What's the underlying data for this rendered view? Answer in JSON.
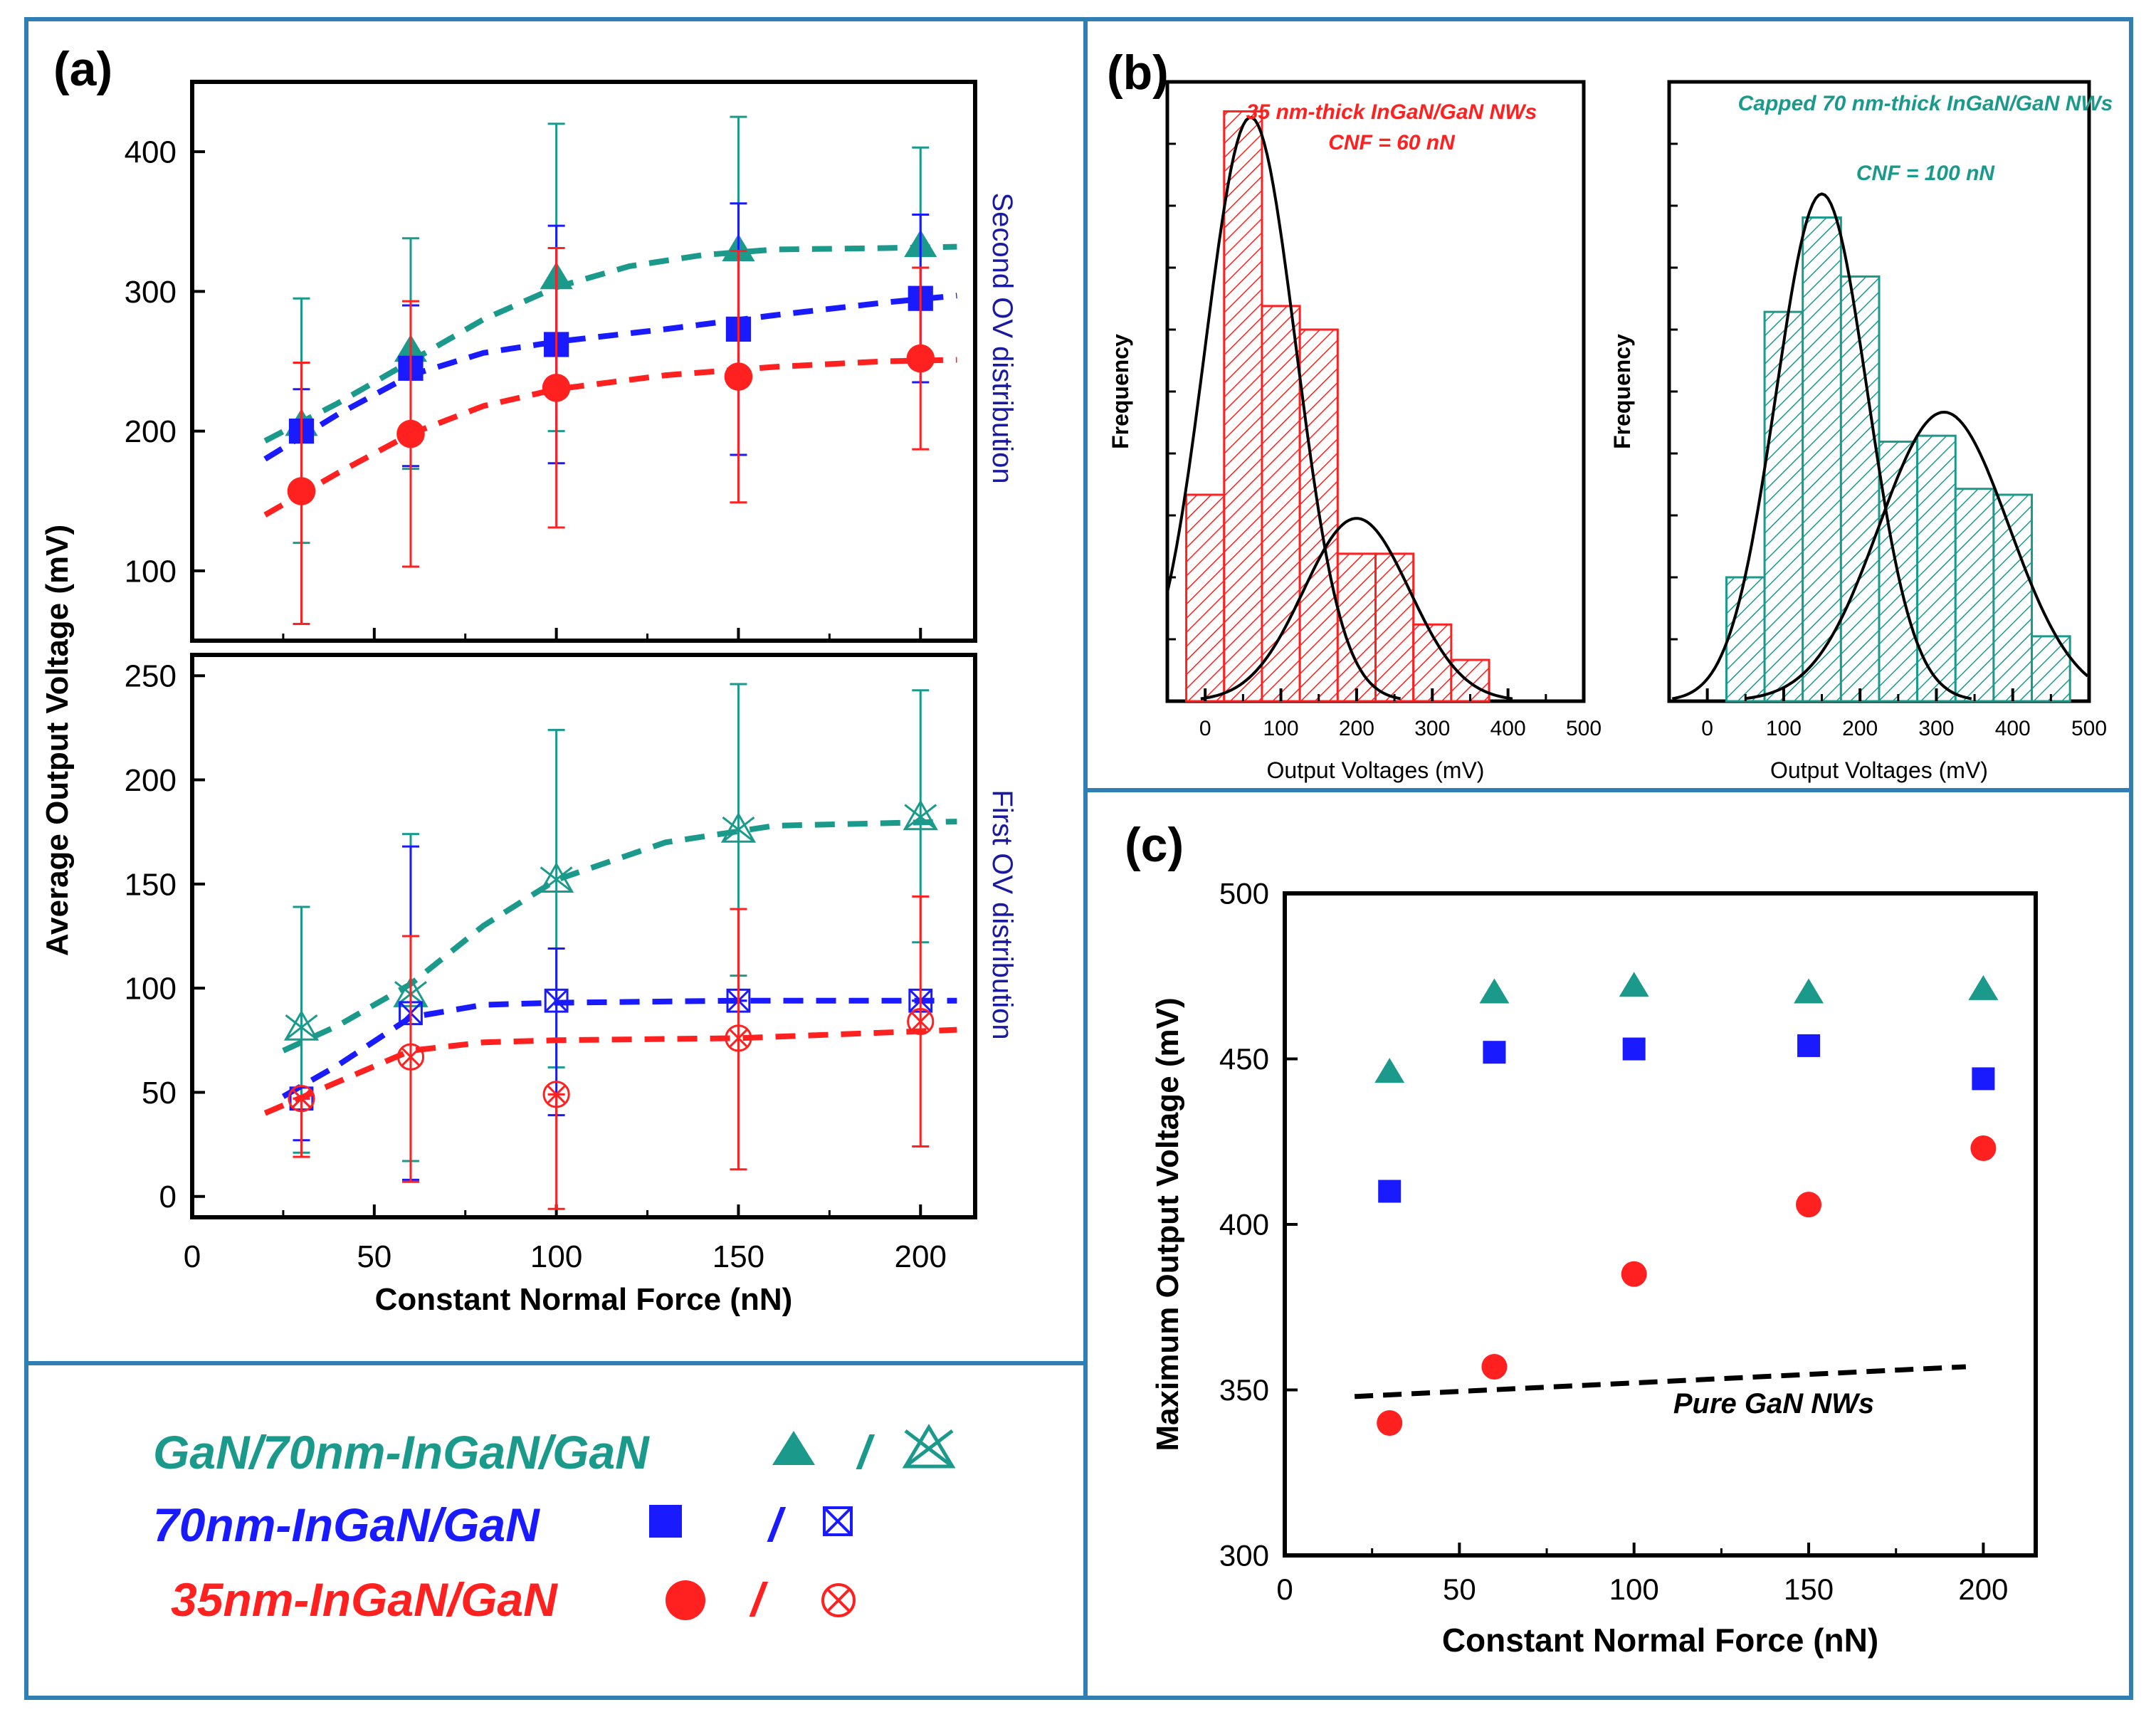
{
  "colors": {
    "teal": "#1b9a8c",
    "blue": "#1a1aff",
    "red": "#ff2020",
    "black": "#000000",
    "frame": "#2f7fb5",
    "axis_text_blue": "#1a1aa0"
  },
  "panel_a": {
    "label": "(a)",
    "ylabel": "Average Output Voltage (mV)",
    "xlabel": "Constant Normal Force (nN)",
    "upper_side_label": "Second OV distribution",
    "lower_side_label": "First OV distribution"
  },
  "panel_b": {
    "label": "(b)"
  },
  "panel_c": {
    "label": "(c)"
  },
  "legend": {
    "items": [
      {
        "name": "GaN/70nm-InGaN/GaN",
        "color": "#1b9a8c",
        "separator": "/"
      },
      {
        "name": "70nm-InGaN/GaN",
        "color": "#1a1aff",
        "separator": "/"
      },
      {
        "name": "35nm-InGaN/GaN",
        "color": "#ff2020",
        "separator": "/"
      }
    ]
  },
  "chart_data": [
    {
      "id": "a_upper",
      "type": "scatter",
      "title": "Second OV distribution",
      "xlim": [
        0,
        215
      ],
      "ylim": [
        50,
        450
      ],
      "xticks": [
        0,
        50,
        100,
        150,
        200
      ],
      "yticks": [
        100,
        200,
        300,
        400
      ],
      "ylabel": "Average Output Voltage (mV)",
      "x": [
        30,
        60,
        100,
        150,
        200
      ],
      "series": [
        {
          "name": "GaN/70nm-InGaN/GaN",
          "marker": "triangle",
          "color": "#1b9a8c",
          "values": [
            205,
            258,
            310,
            330,
            333
          ],
          "err_low": [
            85,
            85,
            110,
            95,
            75
          ],
          "err_high": [
            90,
            80,
            110,
            95,
            70
          ],
          "fit": [
            [
              20,
              193
            ],
            [
              40,
              220
            ],
            [
              60,
              250
            ],
            [
              80,
              280
            ],
            [
              100,
              303
            ],
            [
              120,
              318
            ],
            [
              140,
              326
            ],
            [
              160,
              330
            ],
            [
              190,
              331
            ],
            [
              210,
              332
            ]
          ]
        },
        {
          "name": "70nm-InGaN/GaN",
          "marker": "square",
          "color": "#1a1aff",
          "values": [
            200,
            245,
            262,
            273,
            295
          ],
          "err_low": [
            50,
            70,
            85,
            90,
            60
          ],
          "err_high": [
            30,
            45,
            85,
            90,
            60
          ],
          "fit": [
            [
              20,
              180
            ],
            [
              40,
              212
            ],
            [
              60,
              240
            ],
            [
              80,
              256
            ],
            [
              100,
              264
            ],
            [
              130,
              273
            ],
            [
              160,
              283
            ],
            [
              190,
              292
            ],
            [
              210,
              297
            ]
          ]
        },
        {
          "name": "35nm-InGaN/GaN",
          "marker": "circle",
          "color": "#ff2020",
          "values": [
            157,
            198,
            231,
            239,
            252
          ],
          "err_low": [
            95,
            95,
            100,
            90,
            65
          ],
          "err_high": [
            92,
            95,
            100,
            90,
            65
          ],
          "fit": [
            [
              20,
              140
            ],
            [
              40,
              170
            ],
            [
              60,
              198
            ],
            [
              80,
              218
            ],
            [
              100,
              230
            ],
            [
              130,
              240
            ],
            [
              160,
              246
            ],
            [
              190,
              250
            ],
            [
              210,
              251
            ]
          ]
        }
      ]
    },
    {
      "id": "a_lower",
      "type": "scatter",
      "title": "First OV distribution",
      "xlim": [
        0,
        215
      ],
      "ylim": [
        -10,
        260
      ],
      "xticks": [
        0,
        50,
        100,
        150,
        200
      ],
      "xticklabels": [
        "0",
        "50",
        "100",
        "150",
        "200"
      ],
      "yticks": [
        0,
        50,
        100,
        150,
        200,
        250
      ],
      "xlabel": "Constant Normal Force (nN)",
      "x": [
        30,
        60,
        100,
        150,
        200
      ],
      "series": [
        {
          "name": "GaN/70nm-InGaN/GaN",
          "marker": "crossed-triangle",
          "color": "#1b9a8c",
          "values": [
            81,
            97,
            152,
            176,
            182
          ],
          "err_low": [
            60,
            80,
            90,
            70,
            60
          ],
          "err_high": [
            58,
            77,
            72,
            70,
            61
          ],
          "fit": [
            [
              25,
              70
            ],
            [
              40,
              82
            ],
            [
              60,
              102
            ],
            [
              80,
              130
            ],
            [
              100,
              152
            ],
            [
              130,
              170
            ],
            [
              160,
              178
            ],
            [
              210,
              180
            ]
          ]
        },
        {
          "name": "70nm-InGaN/GaN",
          "marker": "boxed-x",
          "color": "#1a1aff",
          "values": [
            47,
            88,
            94,
            94,
            94
          ],
          "err_low": [
            20,
            80,
            55,
            0,
            0
          ],
          "err_high": [
            0,
            80,
            25,
            0,
            0
          ],
          "fit": [
            [
              25,
              48
            ],
            [
              40,
              63
            ],
            [
              60,
              86
            ],
            [
              80,
              92
            ],
            [
              100,
              93
            ],
            [
              150,
              94
            ],
            [
              210,
              94
            ]
          ]
        },
        {
          "name": "35nm-InGaN/GaN",
          "marker": "circled-x",
          "color": "#ff2020",
          "values": [
            47,
            67,
            49,
            76,
            84
          ],
          "err_low": [
            28,
            60,
            55,
            63,
            60
          ],
          "err_high": [
            0,
            58,
            0,
            62,
            60
          ],
          "fit": [
            [
              20,
              40
            ],
            [
              40,
              55
            ],
            [
              60,
              70
            ],
            [
              80,
              74
            ],
            [
              100,
              75
            ],
            [
              150,
              76
            ],
            [
              210,
              80
            ]
          ]
        }
      ]
    },
    {
      "id": "b_left",
      "type": "bar",
      "title": "35 nm-thick InGaN/GaN NWs",
      "subtitle": "CNF = 60 nN",
      "xlabel": "Output Voltages (mV)",
      "ylabel": "Frequency",
      "xlim": [
        -50,
        500
      ],
      "xticks": [
        0,
        100,
        200,
        300,
        400,
        500
      ],
      "bin_width": 50,
      "bin_centers": [
        0,
        50,
        100,
        150,
        200,
        250,
        300,
        350
      ],
      "values": [
        0.35,
        1.0,
        0.67,
        0.63,
        0.25,
        0.25,
        0.13,
        0.07
      ],
      "fit_curves": [
        {
          "mean": 60,
          "sd": 60,
          "peak": 0.99
        },
        {
          "mean": 200,
          "sd": 70,
          "peak": 0.31
        }
      ]
    },
    {
      "id": "b_right",
      "type": "bar",
      "title": "Capped 70 nm-thick InGaN/GaN NWs",
      "subtitle": "CNF = 100 nN",
      "xlabel": "Output Voltages (mV)",
      "ylabel": "Frequency",
      "xlim": [
        -50,
        500
      ],
      "xticks": [
        0,
        100,
        200,
        300,
        400,
        500
      ],
      "bin_width": 50,
      "bin_centers": [
        50,
        100,
        150,
        200,
        250,
        300,
        350,
        400,
        450
      ],
      "values": [
        0.21,
        0.66,
        0.82,
        0.72,
        0.44,
        0.45,
        0.36,
        0.35,
        0.11
      ],
      "fit_curves": [
        {
          "mean": 150,
          "sd": 60,
          "peak": 0.86
        },
        {
          "mean": 310,
          "sd": 85,
          "peak": 0.49
        }
      ]
    },
    {
      "id": "c",
      "type": "scatter",
      "xlabel": "Constant Normal Force (nN)",
      "ylabel": "Maximum Output Voltage (mV)",
      "xlim": [
        0,
        215
      ],
      "ylim": [
        300,
        500
      ],
      "xticks": [
        0,
        50,
        100,
        150,
        200
      ],
      "yticks": [
        300,
        350,
        400,
        450,
        500
      ],
      "x": [
        30,
        60,
        100,
        150,
        200
      ],
      "series": [
        {
          "name": "GaN/70nm-InGaN/GaN",
          "marker": "triangle",
          "color": "#1b9a8c",
          "values": [
            446,
            470,
            472,
            470,
            471
          ]
        },
        {
          "name": "70nm-InGaN/GaN",
          "marker": "square",
          "color": "#1a1aff",
          "values": [
            410,
            452,
            453,
            454,
            444
          ]
        },
        {
          "name": "35nm-InGaN/GaN",
          "marker": "circle",
          "color": "#ff2020",
          "values": [
            340,
            357,
            385,
            406,
            423
          ]
        }
      ],
      "reference_line": {
        "name": "Pure GaN NWs",
        "points": [
          [
            20,
            348
          ],
          [
            195,
            357
          ]
        ]
      }
    }
  ]
}
